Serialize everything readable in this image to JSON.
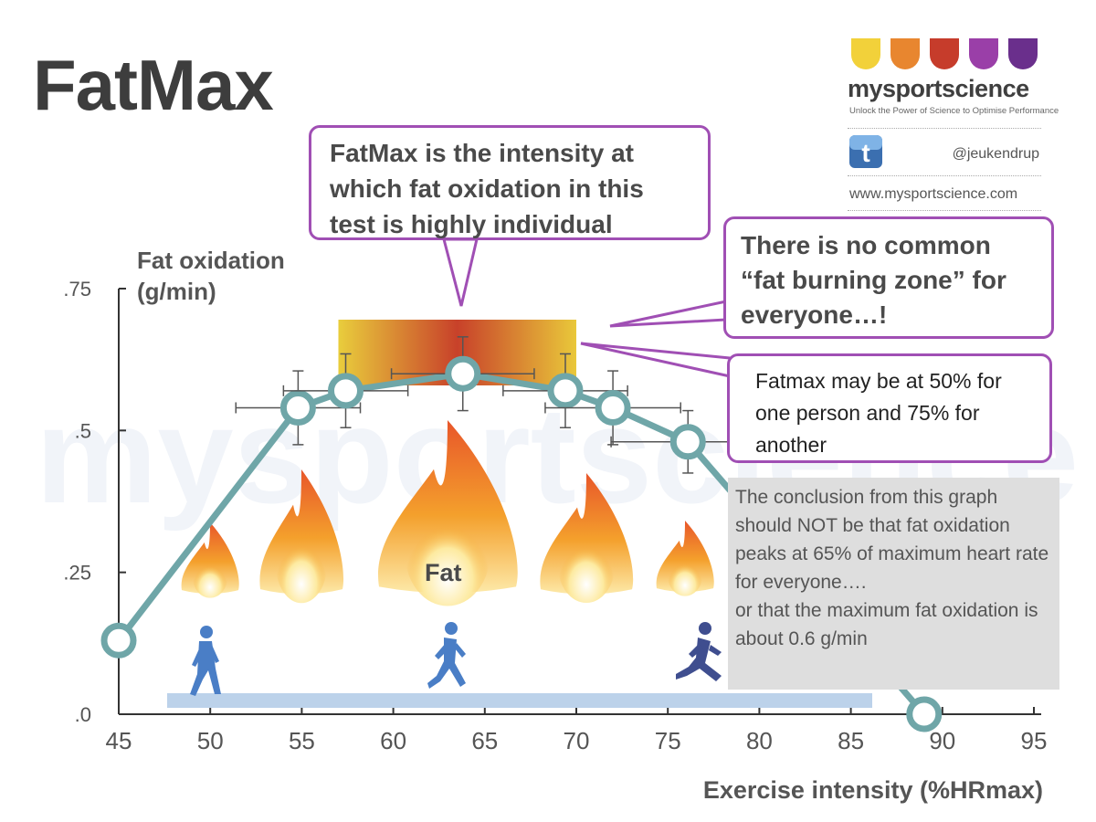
{
  "title": "FatMax",
  "brand": {
    "name": "mysportscience",
    "tagline": "Unlock the Power of Science to Optimise Performance",
    "twitter": "@jeukendrup",
    "website": "www.mysportscience.com",
    "logo_colors": [
      "#f2d13a",
      "#e8862f",
      "#c63c2b",
      "#9a3fa8",
      "#6a2f8c"
    ],
    "twitter_icon": "twitter-icon"
  },
  "callouts": {
    "main": "FatMax is the intensity at which fat oxidation in this test is highly individual",
    "zone": "There is no common “fat burning zone” for everyone…!",
    "example": "Fatmax may be at 50% for one person and 75% for another",
    "conclusion_part1": "The conclusion from this graph should NOT be that fat oxidation peaks at 65% of maximum heart rate for everyone….",
    "conclusion_part2": "or that the maximum fat oxidation is about 0.6 g/min"
  },
  "flame_label": "Fat",
  "colors": {
    "line": "#6fa6a8",
    "callout_border": "#a04fb4",
    "zone_gradient": [
      "#e8c93a",
      "#c8452c",
      "#e8c93a"
    ],
    "bar": "#bcd2ea",
    "runner": "#4a7ec6"
  },
  "chart_data": {
    "type": "line",
    "title": "",
    "xlabel": "Exercise intensity (%HRmax)",
    "ylabel": "Fat oxidation (g/min)",
    "xlim": [
      45,
      95
    ],
    "ylim": [
      0,
      0.75
    ],
    "x_ticks": [
      "45",
      "50",
      "55",
      "60",
      "65",
      "70",
      "75",
      "80",
      "85",
      "90",
      "95"
    ],
    "y_ticks": [
      ".0",
      ".25",
      ".5",
      ".75"
    ],
    "series": [
      {
        "x": [
          45,
          54.8,
          57.4,
          63.8,
          69.4,
          72,
          76.1,
          89
        ],
        "y": [
          0.13,
          0.54,
          0.57,
          0.6,
          0.57,
          0.54,
          0.48,
          0
        ],
        "x_err": [
          null,
          3.4,
          3.4,
          3.9,
          3.4,
          3.7,
          4.2,
          null
        ],
        "y_err": [
          null,
          0.065,
          0.065,
          0.065,
          0.065,
          0.065,
          0.055,
          null
        ]
      }
    ],
    "fatmax_zone": {
      "x_range": [
        57,
        70
      ]
    },
    "grid": false,
    "legend": "none"
  }
}
